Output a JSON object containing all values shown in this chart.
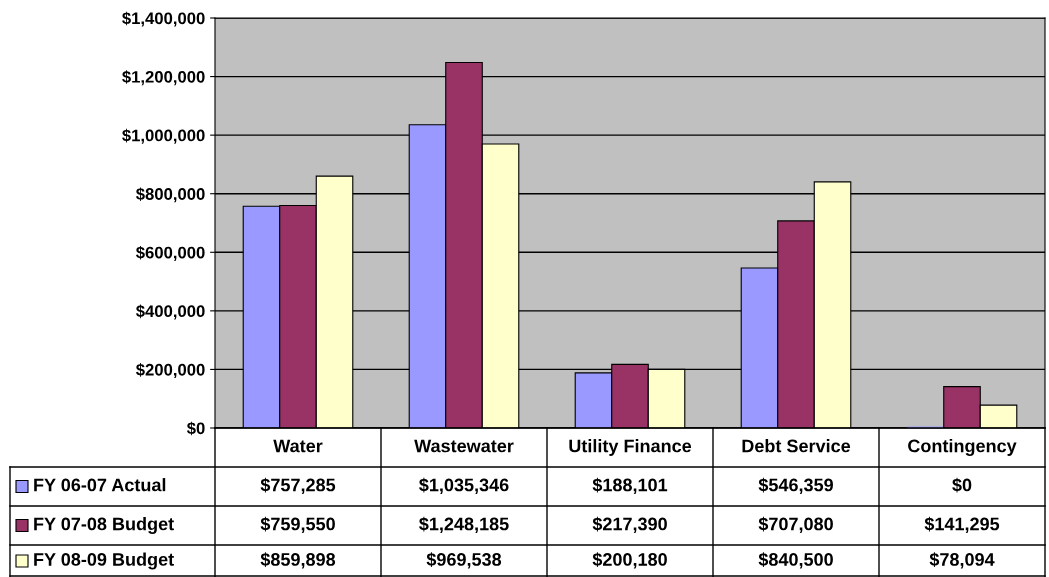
{
  "chart_data": {
    "type": "bar",
    "categories": [
      "Water",
      "Wastewater",
      "Utility Finance",
      "Debt Service",
      "Contingency"
    ],
    "series": [
      {
        "name": "FY 06-07 Actual",
        "color": "#9999ff",
        "values": [
          757285,
          1035346,
          188101,
          546359,
          0
        ],
        "value_labels": [
          "$757,285",
          "$1,035,346",
          "$188,101",
          "$546,359",
          "$0"
        ]
      },
      {
        "name": "FY 07-08 Budget",
        "color": "#993366",
        "values": [
          759550,
          1248185,
          217390,
          707080,
          141295
        ],
        "value_labels": [
          "$759,550",
          "$1,248,185",
          "$217,390",
          "$707,080",
          "$141,295"
        ]
      },
      {
        "name": "FY 08-09 Budget",
        "color": "#ffffcc",
        "values": [
          859898,
          969538,
          200180,
          840500,
          78094
        ],
        "value_labels": [
          "$859,898",
          "$969,538",
          "$200,180",
          "$840,500",
          "$78,094"
        ]
      }
    ],
    "ylim": [
      0,
      1400000
    ],
    "yticks": [
      {
        "value": 0,
        "label": "$0"
      },
      {
        "value": 200000,
        "label": "$200,000"
      },
      {
        "value": 400000,
        "label": "$400,000"
      },
      {
        "value": 600000,
        "label": "$600,000"
      },
      {
        "value": 800000,
        "label": "$800,000"
      },
      {
        "value": 1000000,
        "label": "$1,000,000"
      },
      {
        "value": 1200000,
        "label": "$1,200,000"
      },
      {
        "value": 1400000,
        "label": "$1,400,000"
      }
    ],
    "grid": "y",
    "legend": "bottom left"
  }
}
